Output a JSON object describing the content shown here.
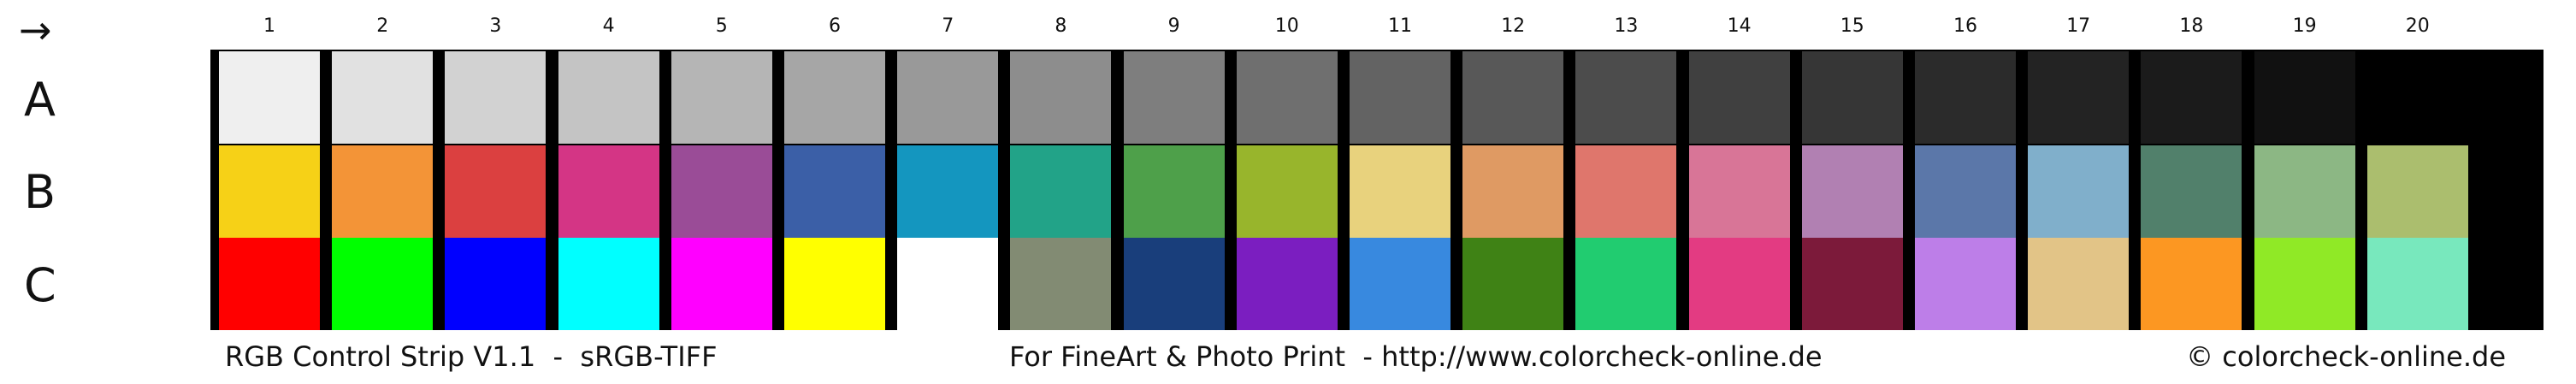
{
  "arrow": "→",
  "icons": {
    "arrow": "arrow-right-icon"
  },
  "columns": [
    "1",
    "2",
    "3",
    "4",
    "5",
    "6",
    "7",
    "8",
    "9",
    "10",
    "11",
    "12",
    "13",
    "14",
    "15",
    "16",
    "17",
    "18",
    "19",
    "20"
  ],
  "rows": [
    {
      "label": "A",
      "colors": [
        "#efefef",
        "#e1e1e1",
        "#d2d2d2",
        "#c4c4c4",
        "#b5b5b5",
        "#a6a6a6",
        "#999999",
        "#8d8d8d",
        "#7e7e7e",
        "#6f6f6f",
        "#636363",
        "#585858",
        "#4c4c4c",
        "#404040",
        "#363636",
        "#2b2b2b",
        "#232323",
        "#1b1b1b",
        "#111111",
        "#000000"
      ]
    },
    {
      "label": "B",
      "colors": [
        "#f6d117",
        "#f39437",
        "#db4040",
        "#d43585",
        "#9a4c97",
        "#3b5fa7",
        "#1496bf",
        "#22a388",
        "#4ea04a",
        "#98b52c",
        "#e8d27d",
        "#df9a63",
        "#df766c",
        "#d87597",
        "#b180b2",
        "#5b77a9",
        "#80afcb",
        "#51806b",
        "#8cb784",
        "#abbe6e"
      ]
    },
    {
      "label": "C",
      "colors": [
        "#ff0000",
        "#00ff00",
        "#0000ff",
        "#00ffff",
        "#ff00ff",
        "#ffff00",
        "#ffffff",
        "#828b73",
        "#193e7b",
        "#7b1ec0",
        "#3889df",
        "#3f8215",
        "#21cc70",
        "#e33b82",
        "#7c1a3a",
        "#bd7ee8",
        "#e2c487",
        "#fc9722",
        "#90e926",
        "#78e8bd"
      ]
    }
  ],
  "footer": {
    "left": "RGB Control Strip V1.1  -  sRGB-TIFF",
    "middle": "For FineArt & Photo Print  - http://www.colorcheck-online.de",
    "right": "© colorcheck-online.de"
  }
}
